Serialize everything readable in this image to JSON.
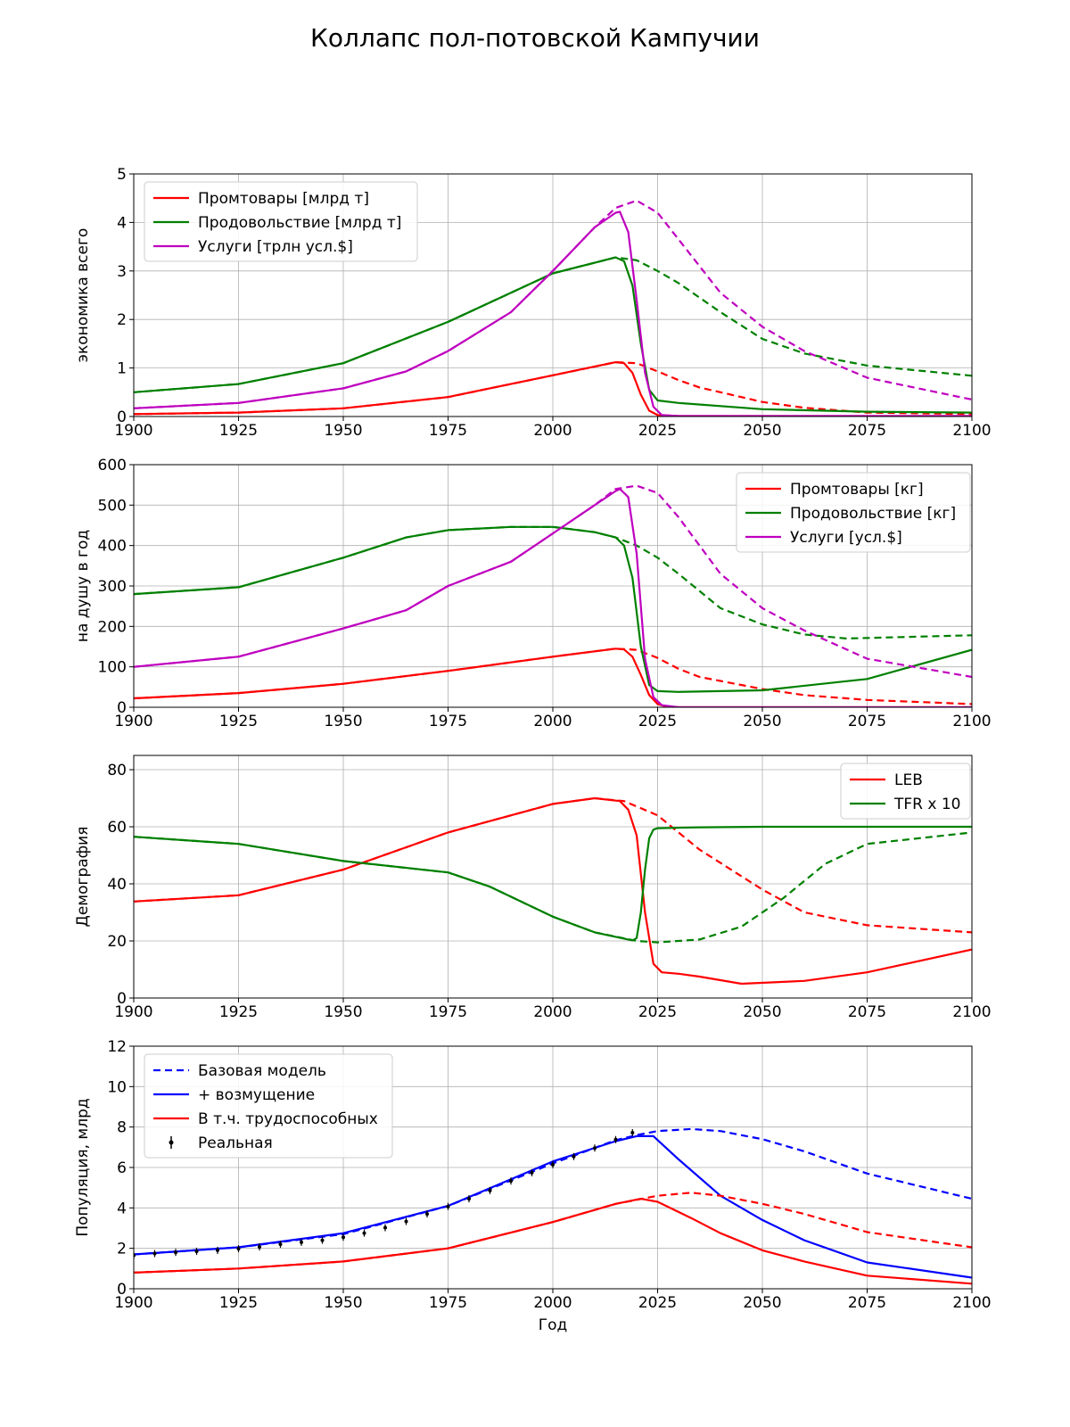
{
  "title": "Коллапс пол-потовской Кампучии",
  "chart_data": [
    {
      "type": "line",
      "ylabel": "экономика всего",
      "xlabel": "",
      "xlim": [
        1900,
        2100
      ],
      "ylim": [
        0,
        5
      ],
      "xticks": [
        1900,
        1925,
        1950,
        1975,
        2000,
        2025,
        2050,
        2075,
        2100
      ],
      "yticks": [
        0,
        1,
        2,
        3,
        4,
        5
      ],
      "grid": true,
      "legend_position": "top-left",
      "legend": [
        {
          "label": "Промтовары [млрд т]",
          "color": "#ff0000"
        },
        {
          "label": "Продовольствие [млрд т]",
          "color": "#008000"
        },
        {
          "label": "Услуги [трлн усл.$]",
          "color": "#bf00bf"
        }
      ],
      "series": [
        {
          "color": "#ff0000",
          "style": "dashed",
          "x": [
            1900,
            1925,
            1950,
            1975,
            2000,
            2015,
            2020,
            2025,
            2030,
            2035,
            2040,
            2050,
            2060,
            2075,
            2100
          ],
          "y": [
            0.05,
            0.08,
            0.17,
            0.4,
            0.85,
            1.12,
            1.1,
            0.93,
            0.75,
            0.6,
            0.5,
            0.3,
            0.18,
            0.08,
            0.05
          ]
        },
        {
          "color": "#ff0000",
          "style": "solid",
          "x": [
            1900,
            1925,
            1950,
            1975,
            2000,
            2015,
            2017,
            2019,
            2021,
            2023,
            2025,
            2030,
            2050,
            2100
          ],
          "y": [
            0.05,
            0.08,
            0.17,
            0.4,
            0.85,
            1.12,
            1.1,
            0.9,
            0.45,
            0.12,
            0.03,
            0.01,
            0.01,
            0.01
          ]
        },
        {
          "color": "#008000",
          "style": "dashed",
          "x": [
            1900,
            1925,
            1950,
            1975,
            2000,
            2015,
            2020,
            2025,
            2030,
            2035,
            2040,
            2050,
            2060,
            2075,
            2100
          ],
          "y": [
            0.5,
            0.67,
            1.1,
            1.95,
            2.95,
            3.28,
            3.22,
            3.0,
            2.75,
            2.45,
            2.15,
            1.6,
            1.3,
            1.05,
            0.84
          ]
        },
        {
          "color": "#008000",
          "style": "solid",
          "x": [
            1900,
            1925,
            1950,
            1975,
            2000,
            2015,
            2017,
            2019,
            2021,
            2023,
            2025,
            2030,
            2050,
            2075,
            2100
          ],
          "y": [
            0.5,
            0.67,
            1.1,
            1.95,
            2.95,
            3.28,
            3.2,
            2.7,
            1.5,
            0.55,
            0.33,
            0.28,
            0.15,
            0.1,
            0.08
          ]
        },
        {
          "color": "#bf00bf",
          "style": "dashed",
          "x": [
            1900,
            1925,
            1950,
            1965,
            1975,
            1990,
            2000,
            2010,
            2015,
            2020,
            2025,
            2030,
            2040,
            2050,
            2060,
            2075,
            2100
          ],
          "y": [
            0.17,
            0.28,
            0.58,
            0.93,
            1.35,
            2.15,
            3.0,
            3.9,
            4.3,
            4.45,
            4.2,
            3.65,
            2.55,
            1.85,
            1.35,
            0.8,
            0.35
          ]
        },
        {
          "color": "#bf00bf",
          "style": "solid",
          "x": [
            1900,
            1925,
            1950,
            1965,
            1975,
            1990,
            2000,
            2010,
            2015,
            2016,
            2018,
            2020,
            2022,
            2024,
            2026,
            2030,
            2100
          ],
          "y": [
            0.17,
            0.28,
            0.58,
            0.93,
            1.35,
            2.15,
            3.0,
            3.9,
            4.2,
            4.22,
            3.8,
            2.4,
            0.9,
            0.2,
            0.03,
            0.01,
            0.01
          ]
        }
      ]
    },
    {
      "type": "line",
      "ylabel": "на душу в год",
      "xlabel": "",
      "xlim": [
        1900,
        2100
      ],
      "ylim": [
        0,
        600
      ],
      "xticks": [
        1900,
        1925,
        1950,
        1975,
        2000,
        2025,
        2050,
        2075,
        2100
      ],
      "yticks": [
        0,
        100,
        200,
        300,
        400,
        500,
        600
      ],
      "grid": true,
      "legend_position": "top-right",
      "legend": [
        {
          "label": "Промтовары [кг]",
          "color": "#ff0000"
        },
        {
          "label": "Продовольствие [кг]",
          "color": "#008000"
        },
        {
          "label": "Услуги [усл.$]",
          "color": "#bf00bf"
        }
      ],
      "series": [
        {
          "color": "#ff0000",
          "style": "dashed",
          "x": [
            1900,
            1925,
            1950,
            1975,
            2000,
            2015,
            2020,
            2025,
            2030,
            2035,
            2040,
            2050,
            2060,
            2075,
            2100
          ],
          "y": [
            22,
            35,
            58,
            90,
            125,
            145,
            142,
            122,
            95,
            75,
            65,
            45,
            30,
            18,
            8
          ]
        },
        {
          "color": "#ff0000",
          "style": "solid",
          "x": [
            1900,
            1925,
            1950,
            1975,
            2000,
            2015,
            2017,
            2019,
            2021,
            2023,
            2025,
            2027,
            2030,
            2100
          ],
          "y": [
            22,
            35,
            58,
            90,
            125,
            145,
            143,
            125,
            80,
            30,
            8,
            2,
            0,
            0
          ]
        },
        {
          "color": "#008000",
          "style": "dashed",
          "x": [
            1900,
            1925,
            1950,
            1965,
            1975,
            1990,
            2000,
            2010,
            2015,
            2020,
            2025,
            2030,
            2040,
            2050,
            2060,
            2070,
            2100
          ],
          "y": [
            280,
            297,
            370,
            420,
            438,
            446,
            446,
            433,
            420,
            400,
            370,
            330,
            245,
            205,
            180,
            170,
            178
          ]
        },
        {
          "color": "#008000",
          "style": "solid",
          "x": [
            1900,
            1925,
            1950,
            1965,
            1975,
            1990,
            2000,
            2010,
            2015,
            2017,
            2019,
            2021,
            2023,
            2025,
            2030,
            2050,
            2075,
            2100
          ],
          "y": [
            280,
            297,
            370,
            420,
            438,
            446,
            446,
            433,
            420,
            400,
            320,
            150,
            55,
            40,
            38,
            42,
            70,
            142
          ]
        },
        {
          "color": "#bf00bf",
          "style": "dashed",
          "x": [
            1900,
            1925,
            1950,
            1955,
            1965,
            1975,
            1990,
            2000,
            2010,
            2015,
            2020,
            2025,
            2030,
            2040,
            2050,
            2060,
            2075,
            2100
          ],
          "y": [
            100,
            125,
            195,
            210,
            240,
            300,
            360,
            430,
            500,
            540,
            548,
            530,
            470,
            330,
            245,
            190,
            120,
            75
          ]
        },
        {
          "color": "#bf00bf",
          "style": "solid",
          "x": [
            1900,
            1925,
            1950,
            1955,
            1965,
            1975,
            1990,
            2000,
            2010,
            2015,
            2016,
            2018,
            2020,
            2022,
            2024,
            2026,
            2030,
            2100
          ],
          "y": [
            100,
            125,
            195,
            210,
            240,
            300,
            360,
            430,
            500,
            535,
            540,
            520,
            380,
            120,
            25,
            5,
            0,
            0
          ]
        }
      ]
    },
    {
      "type": "line",
      "ylabel": "Демография",
      "xlabel": "",
      "xlim": [
        1900,
        2100
      ],
      "ylim": [
        0,
        85
      ],
      "xticks": [
        1900,
        1925,
        1950,
        1975,
        2000,
        2025,
        2050,
        2075,
        2100
      ],
      "yticks": [
        0,
        20,
        40,
        60,
        80
      ],
      "grid": true,
      "legend_position": "top-right",
      "legend": [
        {
          "label": "LEB",
          "color": "#ff0000"
        },
        {
          "label": "TFR x 10",
          "color": "#008000"
        }
      ],
      "series": [
        {
          "color": "#ff0000",
          "style": "dashed",
          "x": [
            1900,
            1925,
            1950,
            1975,
            2000,
            2010,
            2017,
            2025,
            2035,
            2050,
            2060,
            2075,
            2100
          ],
          "y": [
            33.8,
            36,
            45,
            58,
            68,
            70,
            69,
            64,
            52,
            38,
            30,
            25.5,
            23
          ]
        },
        {
          "color": "#ff0000",
          "style": "solid",
          "x": [
            1900,
            1925,
            1950,
            1975,
            2000,
            2010,
            2016,
            2018,
            2020,
            2022,
            2024,
            2026,
            2030,
            2035,
            2045,
            2060,
            2075,
            2100
          ],
          "y": [
            33.8,
            36,
            45,
            58,
            68,
            70,
            69,
            66,
            57,
            30,
            12,
            9,
            8.5,
            7.5,
            5,
            6,
            9,
            17
          ]
        },
        {
          "color": "#008000",
          "style": "dashed",
          "x": [
            1900,
            1925,
            1950,
            1975,
            1985,
            2000,
            2010,
            2020,
            2025,
            2035,
            2045,
            2055,
            2065,
            2075,
            2100
          ],
          "y": [
            56.5,
            54,
            48,
            44,
            39,
            28.5,
            23,
            20,
            19.5,
            20.5,
            25,
            35,
            47,
            54,
            58
          ]
        },
        {
          "color": "#008000",
          "style": "solid",
          "x": [
            1900,
            1925,
            1950,
            1975,
            1985,
            2000,
            2010,
            2019,
            2020,
            2021,
            2022,
            2023,
            2024,
            2025,
            2035,
            2050,
            2100
          ],
          "y": [
            56.5,
            54,
            48,
            44,
            39,
            28.5,
            23,
            20.2,
            21,
            30,
            45,
            56,
            59,
            59.5,
            59.8,
            60,
            60
          ]
        }
      ]
    },
    {
      "type": "line",
      "ylabel": "Популяция, млрд",
      "xlabel": "Год",
      "xlim": [
        1900,
        2100
      ],
      "ylim": [
        0,
        12
      ],
      "xticks": [
        1900,
        1925,
        1950,
        1975,
        2000,
        2025,
        2050,
        2075,
        2100
      ],
      "yticks": [
        0,
        2,
        4,
        6,
        8,
        10,
        12
      ],
      "grid": true,
      "legend_position": "top-left",
      "legend": [
        {
          "label": "Базовая модель",
          "color": "#0000ff",
          "style": "dashed"
        },
        {
          "label": "+ возмущение",
          "color": "#0000ff",
          "style": "solid"
        },
        {
          "label": "В т.ч. трудоспособных",
          "color": "#ff0000",
          "style": "solid"
        },
        {
          "label": "Реальная",
          "color": "#000000",
          "style": "marker"
        }
      ],
      "series": [
        {
          "color": "#0000ff",
          "style": "dashed",
          "x": [
            1900,
            1925,
            1950,
            1975,
            2000,
            2015,
            2020,
            2025,
            2033,
            2040,
            2050,
            2060,
            2075,
            2100
          ],
          "y": [
            1.7,
            2.05,
            2.7,
            4.1,
            6.2,
            7.35,
            7.6,
            7.8,
            7.9,
            7.8,
            7.4,
            6.8,
            5.7,
            4.45
          ]
        },
        {
          "color": "#0000ff",
          "style": "solid",
          "x": [
            1900,
            1925,
            1950,
            1975,
            2000,
            2015,
            2020,
            2024,
            2030,
            2040,
            2050,
            2060,
            2075,
            2100
          ],
          "y": [
            1.7,
            2.05,
            2.75,
            4.1,
            6.3,
            7.3,
            7.55,
            7.55,
            6.4,
            4.6,
            3.4,
            2.4,
            1.3,
            0.55
          ]
        },
        {
          "color": "#ff0000",
          "style": "dashed",
          "x": [
            1900,
            1925,
            1950,
            1975,
            2000,
            2015,
            2020,
            2025,
            2033,
            2040,
            2050,
            2060,
            2075,
            2100
          ],
          "y": [
            0.8,
            1.0,
            1.35,
            2.0,
            3.3,
            4.2,
            4.4,
            4.6,
            4.75,
            4.6,
            4.2,
            3.7,
            2.8,
            2.05
          ]
        },
        {
          "color": "#ff0000",
          "style": "solid",
          "x": [
            1900,
            1925,
            1950,
            1975,
            2000,
            2015,
            2021,
            2025,
            2033,
            2040,
            2050,
            2060,
            2075,
            2100
          ],
          "y": [
            0.8,
            1.0,
            1.35,
            2.0,
            3.3,
            4.2,
            4.45,
            4.3,
            3.5,
            2.75,
            1.9,
            1.35,
            0.65,
            0.25
          ]
        },
        {
          "color": "#000000",
          "style": "markers",
          "x": [
            1900,
            1905,
            1910,
            1915,
            1920,
            1925,
            1930,
            1935,
            1940,
            1945,
            1950,
            1955,
            1960,
            1965,
            1970,
            1975,
            1980,
            1985,
            1990,
            1995,
            2000,
            2005,
            2010,
            2015,
            2019
          ],
          "y": [
            1.65,
            1.74,
            1.8,
            1.85,
            1.9,
            1.98,
            2.07,
            2.2,
            2.3,
            2.4,
            2.55,
            2.75,
            3.02,
            3.33,
            3.7,
            4.07,
            4.45,
            4.86,
            5.33,
            5.74,
            6.14,
            6.54,
            6.96,
            7.38,
            7.72
          ]
        }
      ]
    }
  ]
}
